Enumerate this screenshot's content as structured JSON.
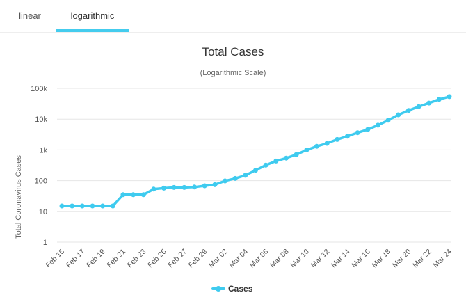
{
  "tabs": [
    {
      "label": "linear",
      "active": false
    },
    {
      "label": "logarithmic",
      "active": true
    }
  ],
  "colors": {
    "accent": "#44ccee",
    "series": "#3fcbef",
    "grid": "#e6e6e6",
    "text": "#333333"
  },
  "chart_data": {
    "type": "line",
    "title": "Total Cases",
    "subtitle": "(Logarithmic Scale)",
    "xlabel": "",
    "ylabel": "Total Coronavirus Cases",
    "y_scale": "log",
    "ylim": [
      1,
      100000
    ],
    "y_ticks": [
      {
        "value": 1,
        "label": "1"
      },
      {
        "value": 10,
        "label": "10"
      },
      {
        "value": 100,
        "label": "100"
      },
      {
        "value": 1000,
        "label": "1k"
      },
      {
        "value": 10000,
        "label": "10k"
      },
      {
        "value": 100000,
        "label": "100k"
      }
    ],
    "grid": true,
    "legend": "bottom-center",
    "categories": [
      "Feb 15",
      "Feb 16",
      "Feb 17",
      "Feb 18",
      "Feb 19",
      "Feb 20",
      "Feb 21",
      "Feb 22",
      "Feb 23",
      "Feb 24",
      "Feb 25",
      "Feb 26",
      "Feb 27",
      "Feb 28",
      "Feb 29",
      "Mar 01",
      "Mar 02",
      "Mar 03",
      "Mar 04",
      "Mar 05",
      "Mar 06",
      "Mar 07",
      "Mar 08",
      "Mar 09",
      "Mar 10",
      "Mar 11",
      "Mar 12",
      "Mar 13",
      "Mar 14",
      "Mar 15",
      "Mar 16",
      "Mar 17",
      "Mar 18",
      "Mar 19",
      "Mar 20",
      "Mar 21",
      "Mar 22",
      "Mar 23",
      "Mar 24"
    ],
    "x_tick_labels": [
      "Feb 15",
      "Feb 17",
      "Feb 19",
      "Feb 21",
      "Feb 23",
      "Feb 25",
      "Feb 27",
      "Feb 29",
      "Mar 02",
      "Mar 04",
      "Mar 06",
      "Mar 08",
      "Mar 10",
      "Mar 12",
      "Mar 14",
      "Mar 16",
      "Mar 18",
      "Mar 20",
      "Mar 22",
      "Mar 24"
    ],
    "series": [
      {
        "name": "Cases",
        "values": [
          15,
          15,
          15,
          15,
          15,
          15,
          35,
          35,
          35,
          53,
          57,
          60,
          60,
          62,
          68,
          74,
          98,
          118,
          149,
          217,
          319,
          435,
          541,
          704,
          994,
          1301,
          1630,
          2183,
          2770,
          3613,
          4596,
          6344,
          9197,
          13779,
          19100,
          25489,
          33276,
          43843,
          53740
        ]
      }
    ]
  }
}
